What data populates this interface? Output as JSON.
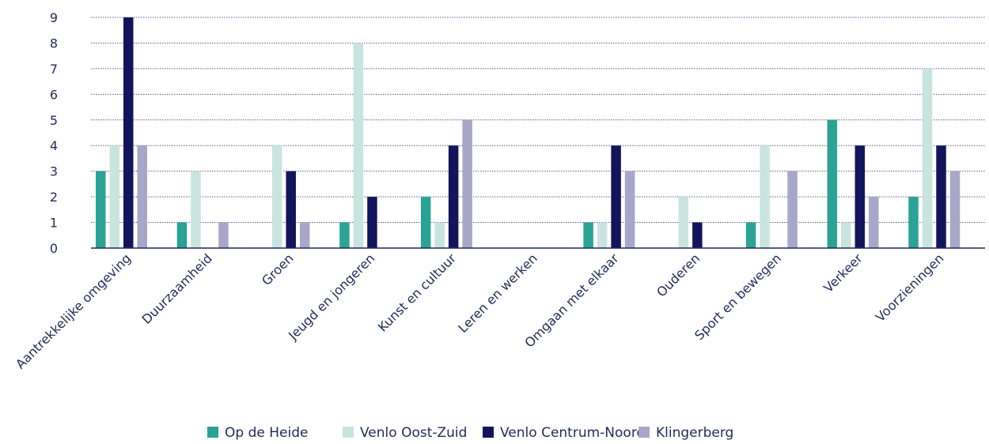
{
  "chart_data": {
    "type": "bar",
    "title": "",
    "xlabel": "",
    "ylabel": "",
    "ylim": [
      0,
      9
    ],
    "yticks": [
      0,
      1,
      2,
      3,
      4,
      5,
      6,
      7,
      8,
      9
    ],
    "grid": true,
    "legend_position": "bottom",
    "categories": [
      "Aantrekkelijke omgeving",
      "Duurzaamheid",
      "Groen",
      "Jeugd en jongeren",
      "Kunst en cultuur",
      "Leren en werken",
      "Omgaan met elkaar",
      "Ouderen",
      "Sport en bewegen",
      "Verkeer",
      "Voorzieningen"
    ],
    "series": [
      {
        "name": "Op de Heide",
        "color": "#2aa395",
        "values": [
          3,
          1,
          0,
          1,
          2,
          0,
          1,
          0,
          1,
          5,
          2
        ]
      },
      {
        "name": "Venlo Oost-Zuid",
        "color": "#c9e4df",
        "values": [
          4,
          3,
          4,
          8,
          1,
          0,
          1,
          2,
          4,
          1,
          7
        ]
      },
      {
        "name": "Venlo Centrum-Noord",
        "color": "#13155c",
        "values": [
          9,
          0,
          3,
          2,
          4,
          0,
          4,
          1,
          0,
          4,
          4
        ]
      },
      {
        "name": "Klingerberg",
        "color": "#a9a7c9",
        "values": [
          4,
          1,
          1,
          0,
          5,
          0,
          3,
          0,
          3,
          2,
          3
        ]
      }
    ]
  }
}
